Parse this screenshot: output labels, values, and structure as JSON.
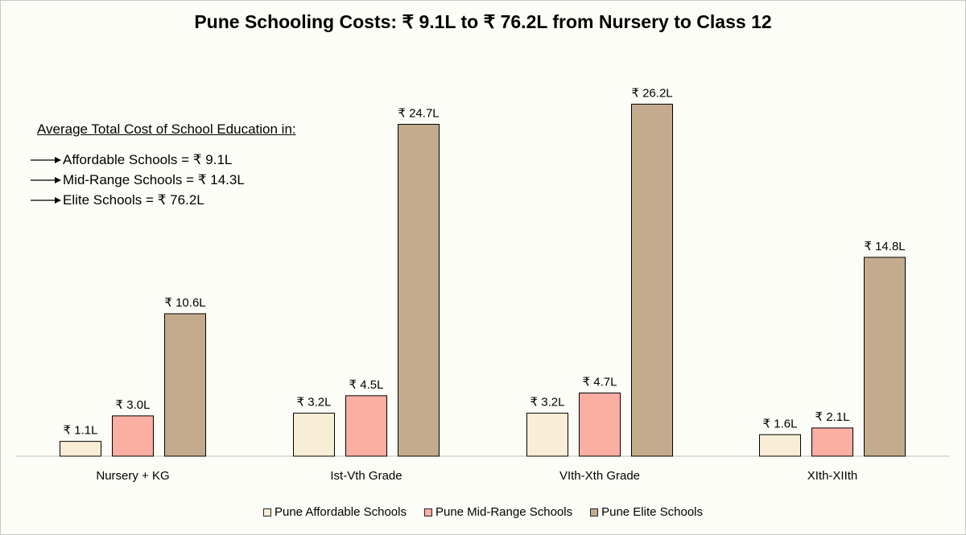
{
  "title": "Pune Schooling Costs: ₹ 9.1L to ₹ 76.2L from Nursery to Class 12",
  "annotation": {
    "heading": "Average Total Cost of School Education in:",
    "items": [
      "Affordable Schools = ₹ 9.1L",
      "Mid-Range Schools = ₹ 14.3L",
      "Elite Schools = ₹ 76.2L"
    ]
  },
  "chart_data": {
    "type": "bar",
    "title": "Pune Schooling Costs: ₹ 9.1L to ₹ 76.2L from Nursery to Class 12",
    "categories": [
      "Nursery + KG",
      "Ist-Vth Grade",
      "VIth-Xth Grade",
      "XIth-XIIth"
    ],
    "series": [
      {
        "name": "Pune Affordable Schools",
        "values": [
          1.1,
          3.2,
          3.2,
          1.6
        ],
        "labels": [
          "₹ 1.1L",
          "₹ 3.2L",
          "₹ 3.2L",
          "₹ 1.6L"
        ],
        "color": "#f8eed6"
      },
      {
        "name": "Pune Mid-Range Schools",
        "values": [
          3.0,
          4.5,
          4.7,
          2.1
        ],
        "labels": [
          "₹ 3.0L",
          "₹ 4.5L",
          "₹ 4.7L",
          "₹ 2.1L"
        ],
        "color": "#fbaea2"
      },
      {
        "name": "Pune Elite Schools",
        "values": [
          10.6,
          24.7,
          26.2,
          14.8
        ],
        "labels": [
          "₹ 10.6L",
          "₹ 24.7L",
          "₹ 26.2L",
          "₹ 14.8L"
        ],
        "color": "#c4ab8d"
      }
    ],
    "xlabel": "",
    "ylabel": "",
    "ylim": [
      0,
      28
    ],
    "grid": false,
    "legend": "bottom"
  }
}
